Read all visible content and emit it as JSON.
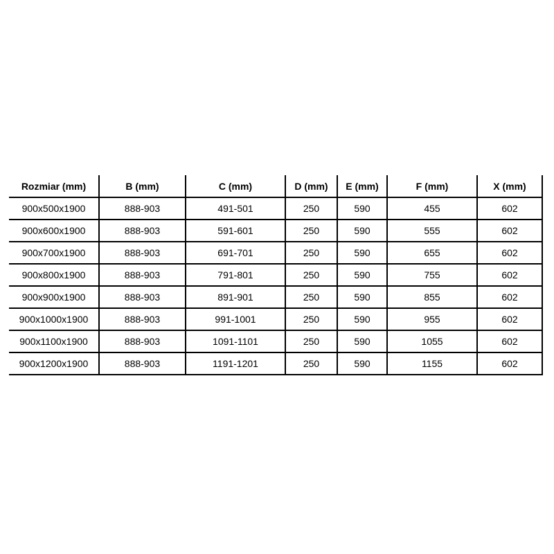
{
  "chart_data": {
    "type": "table",
    "title": "",
    "columns": [
      "Rozmiar (mm)",
      "B (mm)",
      "C (mm)",
      "D (mm)",
      "E (mm)",
      "F (mm)",
      "X (mm)"
    ],
    "rows": [
      [
        "900x500x1900",
        "888-903",
        "491-501",
        "250",
        "590",
        "455",
        "602"
      ],
      [
        "900x600x1900",
        "888-903",
        "591-601",
        "250",
        "590",
        "555",
        "602"
      ],
      [
        "900x700x1900",
        "888-903",
        "691-701",
        "250",
        "590",
        "655",
        "602"
      ],
      [
        "900x800x1900",
        "888-903",
        "791-801",
        "250",
        "590",
        "755",
        "602"
      ],
      [
        "900x900x1900",
        "888-903",
        "891-901",
        "250",
        "590",
        "855",
        "602"
      ],
      [
        "900x1000x1900",
        "888-903",
        "991-1001",
        "250",
        "590",
        "955",
        "602"
      ],
      [
        "900x1100x1900",
        "888-903",
        "1091-1101",
        "250",
        "590",
        "1055",
        "602"
      ],
      [
        "900x1200x1900",
        "888-903",
        "1191-1201",
        "250",
        "590",
        "1155",
        "602"
      ]
    ],
    "layout": {
      "legend": "none",
      "grid": "full-borders-except-top-and-left-outer"
    },
    "colors": {
      "border": "#000000",
      "text": "#000000",
      "background": "#ffffff"
    }
  }
}
